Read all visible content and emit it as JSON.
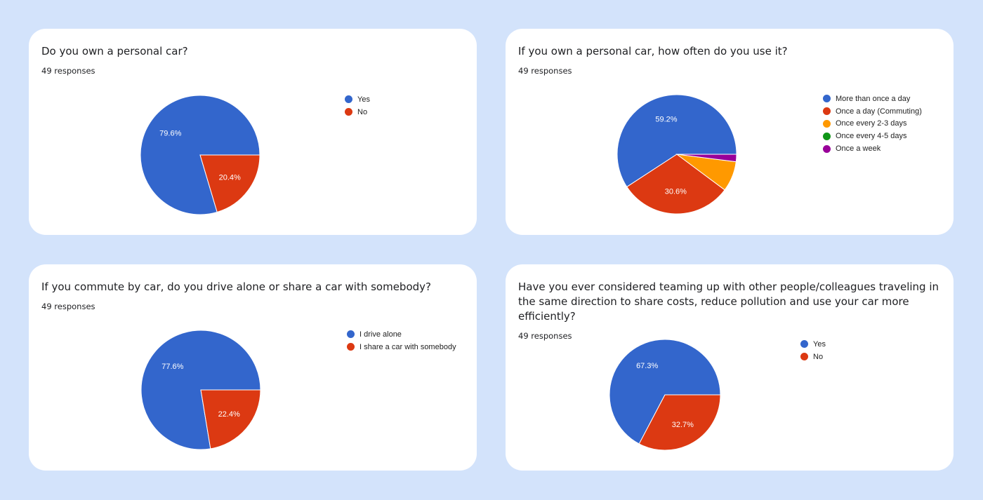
{
  "colors": {
    "page_bg": "#d3e3fb",
    "blue": "#3366cc",
    "red": "#dc3912",
    "orange": "#ff9900",
    "green": "#109618",
    "purple": "#990099"
  },
  "chart_data": [
    {
      "type": "pie",
      "title": "Do you own a personal car?",
      "subtitle": "49 responses",
      "categories": [
        "Yes",
        "No"
      ],
      "values": [
        79.6,
        20.4
      ],
      "labels": [
        "79.6%",
        "20.4%"
      ],
      "colors": [
        "#3366cc",
        "#dc3912"
      ],
      "legend": "right"
    },
    {
      "type": "pie",
      "title": "If you own a personal car, how often do you use it?",
      "subtitle": "49 responses",
      "categories": [
        "More than once a day",
        "Once a day (Commuting)",
        "Once every 2-3 days",
        "Once every 4-5 days",
        "Once a week"
      ],
      "values": [
        59.2,
        30.6,
        8.2,
        0,
        2.0
      ],
      "labels": [
        "59.2%",
        "30.6%",
        "",
        "",
        ""
      ],
      "colors": [
        "#3366cc",
        "#dc3912",
        "#ff9900",
        "#109618",
        "#990099"
      ],
      "legend": "right"
    },
    {
      "type": "pie",
      "title": "If you commute by car, do you drive alone or share a car with somebody?",
      "subtitle": "49 responses",
      "categories": [
        "I drive alone",
        "I share a car with somebody"
      ],
      "values": [
        77.6,
        22.4
      ],
      "labels": [
        "77.6%",
        "22.4%"
      ],
      "colors": [
        "#3366cc",
        "#dc3912"
      ],
      "legend": "right"
    },
    {
      "type": "pie",
      "title": "Have you ever considered teaming up with other people/colleagues traveling in the same direction to share costs, reduce pollution and use your car more efficiently?",
      "subtitle": "49 responses",
      "categories": [
        "Yes",
        "No"
      ],
      "values": [
        67.3,
        32.7
      ],
      "labels": [
        "67.3%",
        "32.7%"
      ],
      "colors": [
        "#3366cc",
        "#dc3912"
      ],
      "legend": "right"
    }
  ]
}
